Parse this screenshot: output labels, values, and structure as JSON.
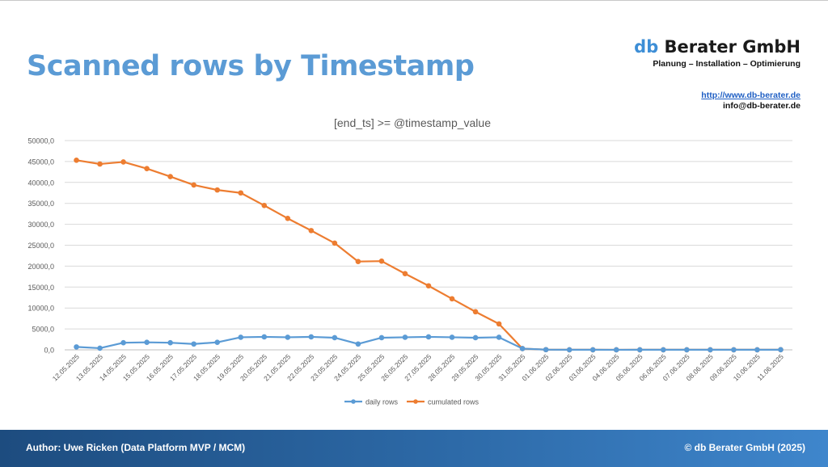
{
  "slide": {
    "title": "Scanned rows by Timestamp",
    "brand_accent": "db",
    "brand_rest": "Berater GmbH",
    "tagline": "Planung – Installation – Optimierung",
    "url": "http://www.db-berater.de",
    "email": "info@db-berater.de"
  },
  "footer": {
    "author": "Author: Uwe Ricken (Data Platform MVP / MCM)",
    "copyright": "© db Berater GmbH (2025)"
  },
  "colors": {
    "title": "#5b9bd5",
    "daily": "#5b9bd5",
    "cumulated": "#ed7d31",
    "grid": "#d9d9d9"
  },
  "chart_data": {
    "type": "line",
    "title": "[end_ts] >= @timestamp_value",
    "xlabel": "",
    "ylabel": "",
    "ylim": [
      0,
      50000
    ],
    "ytick_step": 5000,
    "grid": true,
    "legend_position": "bottom",
    "categories": [
      "12.05.2025",
      "13.05.2025",
      "14.05.2025",
      "15.05.2025",
      "16.05.2025",
      "17.05.2025",
      "18.05.2025",
      "19.05.2025",
      "20.05.2025",
      "21.05.2025",
      "22.05.2025",
      "23.05.2025",
      "24.05.2025",
      "25.05.2025",
      "26.05.2025",
      "27.05.2025",
      "28.05.2025",
      "29.05.2025",
      "30.05.2025",
      "31.05.2025",
      "01.06.2025",
      "02.06.2025",
      "03.06.2025",
      "04.06.2025",
      "05.06.2025",
      "06.06.2025",
      "07.06.2025",
      "08.06.2025",
      "09.06.2025",
      "10.06.2025",
      "11.06.2025"
    ],
    "series": [
      {
        "name": "daily rows",
        "color": "#5b9bd5",
        "values": [
          700,
          400,
          1700,
          1800,
          1700,
          1400,
          1800,
          3000,
          3100,
          3000,
          3100,
          2900,
          1400,
          2900,
          3000,
          3100,
          3000,
          2900,
          3000,
          300,
          50,
          20,
          20,
          10,
          20,
          20,
          20,
          20,
          20,
          20,
          30
        ]
      },
      {
        "name": "cumulated rows",
        "color": "#ed7d31",
        "values": [
          45300,
          44400,
          44900,
          43300,
          41400,
          39400,
          38200,
          37500,
          34500,
          31400,
          28500,
          25500,
          21100,
          21200,
          18200,
          15300,
          12200,
          9100,
          6200,
          300,
          50,
          20,
          20,
          10,
          20,
          20,
          20,
          20,
          20,
          20,
          30
        ]
      }
    ]
  }
}
